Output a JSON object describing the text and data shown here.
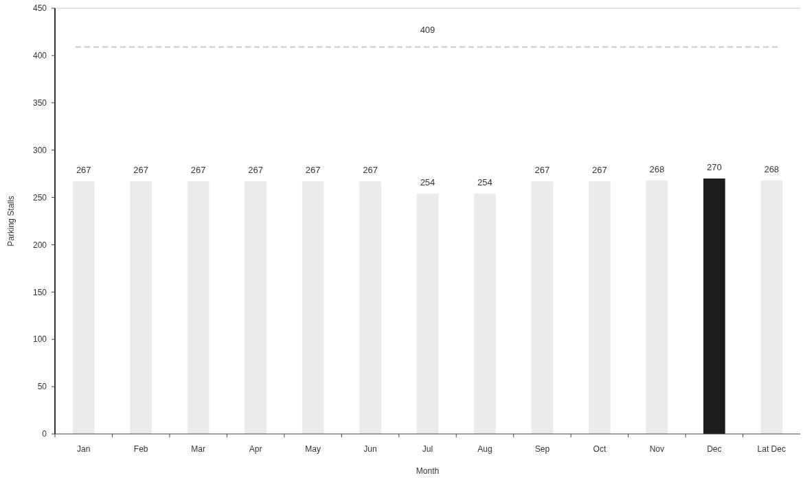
{
  "chart_data": {
    "type": "bar",
    "xlabel": "Month",
    "ylabel": "Parking Stalls",
    "categories": [
      "Jan",
      "Feb",
      "Mar",
      "Apr",
      "May",
      "Jun",
      "Jul",
      "Aug",
      "Sep",
      "Oct",
      "Nov",
      "Dec",
      "Lat Dec"
    ],
    "values": [
      267,
      267,
      267,
      267,
      267,
      267,
      254,
      254,
      267,
      267,
      268,
      270,
      268
    ],
    "colors": [
      "#ebebeb",
      "#ebebeb",
      "#ebebeb",
      "#ebebeb",
      "#ebebeb",
      "#ebebeb",
      "#ebebeb",
      "#ebebeb",
      "#ebebeb",
      "#ebebeb",
      "#ebebeb",
      "#1c1c1c",
      "#ebebeb"
    ],
    "ylim": [
      0,
      450
    ],
    "yticks": [
      0,
      50,
      100,
      150,
      200,
      250,
      300,
      350,
      400,
      450
    ],
    "data_labels": true,
    "ref_lines": [
      {
        "axis": "y",
        "value": 409,
        "label": "409",
        "color": "#c8c8c8",
        "line_style": "dashed"
      }
    ]
  }
}
